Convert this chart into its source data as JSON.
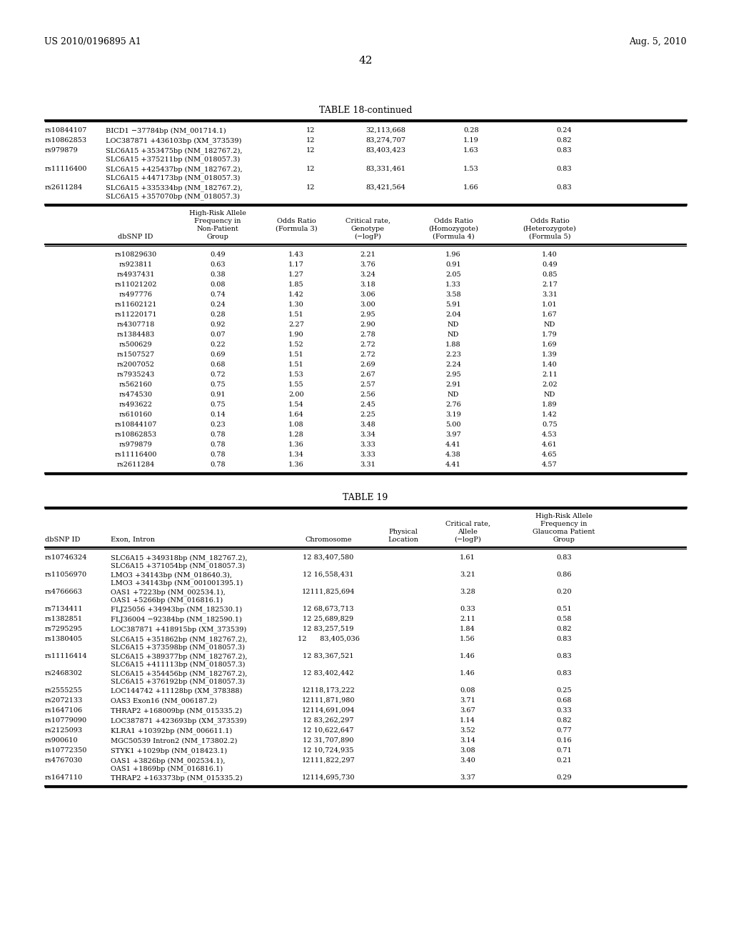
{
  "header_left": "US 2010/0196895 A1",
  "header_right": "Aug. 5, 2010",
  "page_number": "42",
  "table18_continued_title": "TABLE 18-continued",
  "table18_top_rows": [
    [
      "rs10844107",
      "BICD1 −37784bp (NM_001714.1)",
      "12",
      "32,113,668",
      "0.28",
      "0.24"
    ],
    [
      "rs10862853",
      "LOC387871 +436103bp (XM_373539)",
      "12",
      "83,274,707",
      "1.19",
      "0.82"
    ],
    [
      "rs979879",
      "SLC6A15 +353475bp (NM_182767.2),\nSLC6A15 +375211bp (NM_018057.3)",
      "12",
      "83,403,423",
      "1.63",
      "0.83"
    ],
    [
      "rs11116400",
      "SLC6A15 +425437bp (NM_182767.2),\nSLC6A15 +447173bp (NM_018057.3)",
      "12",
      "83,331,461",
      "1.53",
      "0.83"
    ],
    [
      "rs2611284",
      "SLC6A15 +335334bp (NM_182767.2),\nSLC6A15 +357070bp (NM_018057.3)",
      "12",
      "83,421,564",
      "1.66",
      "0.83"
    ]
  ],
  "table18_lower_rows": [
    [
      "rs10829630",
      "0.49",
      "1.43",
      "2.21",
      "1.96",
      "1.40"
    ],
    [
      "rs923811",
      "0.63",
      "1.17",
      "3.76",
      "0.91",
      "0.49"
    ],
    [
      "rs4937431",
      "0.38",
      "1.27",
      "3.24",
      "2.05",
      "0.85"
    ],
    [
      "rs11021202",
      "0.08",
      "1.85",
      "3.18",
      "1.33",
      "2.17"
    ],
    [
      "rs497776",
      "0.74",
      "1.42",
      "3.06",
      "3.58",
      "3.31"
    ],
    [
      "rs11602121",
      "0.24",
      "1.30",
      "3.00",
      "5.91",
      "1.01"
    ],
    [
      "rs11220171",
      "0.28",
      "1.51",
      "2.95",
      "2.04",
      "1.67"
    ],
    [
      "rs4307718",
      "0.92",
      "2.27",
      "2.90",
      "ND",
      "ND"
    ],
    [
      "rs1384483",
      "0.07",
      "1.90",
      "2.78",
      "ND",
      "1.79"
    ],
    [
      "rs500629",
      "0.22",
      "1.52",
      "2.72",
      "1.88",
      "1.69"
    ],
    [
      "rs1507527",
      "0.69",
      "1.51",
      "2.72",
      "2.23",
      "1.39"
    ],
    [
      "rs2007052",
      "0.68",
      "1.51",
      "2.69",
      "2.24",
      "1.40"
    ],
    [
      "rs7935243",
      "0.72",
      "1.53",
      "2.67",
      "2.95",
      "2.11"
    ],
    [
      "rs562160",
      "0.75",
      "1.55",
      "2.57",
      "2.91",
      "2.02"
    ],
    [
      "rs474530",
      "0.91",
      "2.00",
      "2.56",
      "ND",
      "ND"
    ],
    [
      "rs493622",
      "0.75",
      "1.54",
      "2.45",
      "2.76",
      "1.89"
    ],
    [
      "rs610160",
      "0.14",
      "1.64",
      "2.25",
      "3.19",
      "1.42"
    ],
    [
      "rs10844107",
      "0.23",
      "1.08",
      "3.48",
      "5.00",
      "0.75"
    ],
    [
      "rs10862853",
      "0.78",
      "1.28",
      "3.34",
      "3.97",
      "4.53"
    ],
    [
      "rs979879",
      "0.78",
      "1.36",
      "3.33",
      "4.41",
      "4.61"
    ],
    [
      "rs11116400",
      "0.78",
      "1.34",
      "3.33",
      "4.38",
      "4.65"
    ],
    [
      "rs2611284",
      "0.78",
      "1.36",
      "3.31",
      "4.41",
      "4.57"
    ]
  ],
  "table19_title": "TABLE 19",
  "table19_rows": [
    [
      "rs10746324",
      "SLC6A15 +349318bp (NM_182767.2),\nSLC6A15 +371054bp (NM_018057.3)",
      "12 83,407,580",
      "1.61",
      "0.83"
    ],
    [
      "rs11056970",
      "LMO3 +34143bp (NM_018640.3),\nLMO3 +34143bp (NM_001001395.1)",
      "12 16,558,431",
      "3.21",
      "0.86"
    ],
    [
      "rs4766663",
      "OAS1 +7223bp (NM_002534.1),\nOAS1 +5266bp (NM_016816.1)",
      "12111,825,694",
      "3.28",
      "0.20"
    ],
    [
      "rs7134411",
      "FLJ25056 +34943bp (NM_182530.1)",
      "12 68,673,713",
      "0.33",
      "0.51"
    ],
    [
      "rs1382851",
      "FLJ36004 −92384bp (NM_182590.1)",
      "12 25,689,829",
      "2.11",
      "0.58"
    ],
    [
      "rs7295295",
      "LOC387871 +418915bp (XM_373539)",
      "12 83,257,519",
      "1.84",
      "0.82"
    ],
    [
      "rs1380405",
      "SLC6A15 +351862bp (NM_182767.2),\nSLC6A15 +373598bp (NM_018057.3)",
      "12      83,405,036",
      "1.56",
      "0.83"
    ],
    [
      "rs11116414",
      "SLC6A15 +389377bp (NM_182767.2),\nSLC6A15 +411113bp (NM_018057.3)",
      "12 83,367,521",
      "1.46",
      "0.83"
    ],
    [
      "rs2468302",
      "SLC6A15 +354456bp (NM_182767.2),\nSLC6A15 +376192bp (NM_018057.3)",
      "12 83,402,442",
      "1.46",
      "0.83"
    ],
    [
      "rs2555255",
      "LOC144742 +11128bp (XM_378388)",
      "12118,173,222",
      "0.08",
      "0.25"
    ],
    [
      "rs2072133",
      "OAS3 Exon16 (NM_006187.2)",
      "12111,871,980",
      "3.71",
      "0.68"
    ],
    [
      "rs1647106",
      "THRAP2 +168009bp (NM_015335.2)",
      "12114,691,094",
      "3.67",
      "0.33"
    ],
    [
      "rs10779090",
      "LOC387871 +423693bp (XM_373539)",
      "12 83,262,297",
      "1.14",
      "0.82"
    ],
    [
      "rs2125093",
      "KLRA1 +10392bp (NM_006611.1)",
      "12 10,622,647",
      "3.52",
      "0.77"
    ],
    [
      "rs900610",
      "MGC50539 Intron2 (NM_173802.2)",
      "12 31,707,890",
      "3.14",
      "0.16"
    ],
    [
      "rs10772350",
      "STYK1 +1029bp (NM_018423.1)",
      "12 10,724,935",
      "3.08",
      "0.71"
    ],
    [
      "rs4767030",
      "OAS1 +3826bp (NM_002534.1),\nOAS1 +1869bp (NM_016816.1)",
      "12111,822,297",
      "3.40",
      "0.21"
    ],
    [
      "rs1647110",
      "THRAP2 +163373bp (NM_015335.2)",
      "12114,695,730",
      "3.37",
      "0.29"
    ]
  ],
  "lm": 0.062,
  "rm": 0.938,
  "fs": 7.0
}
